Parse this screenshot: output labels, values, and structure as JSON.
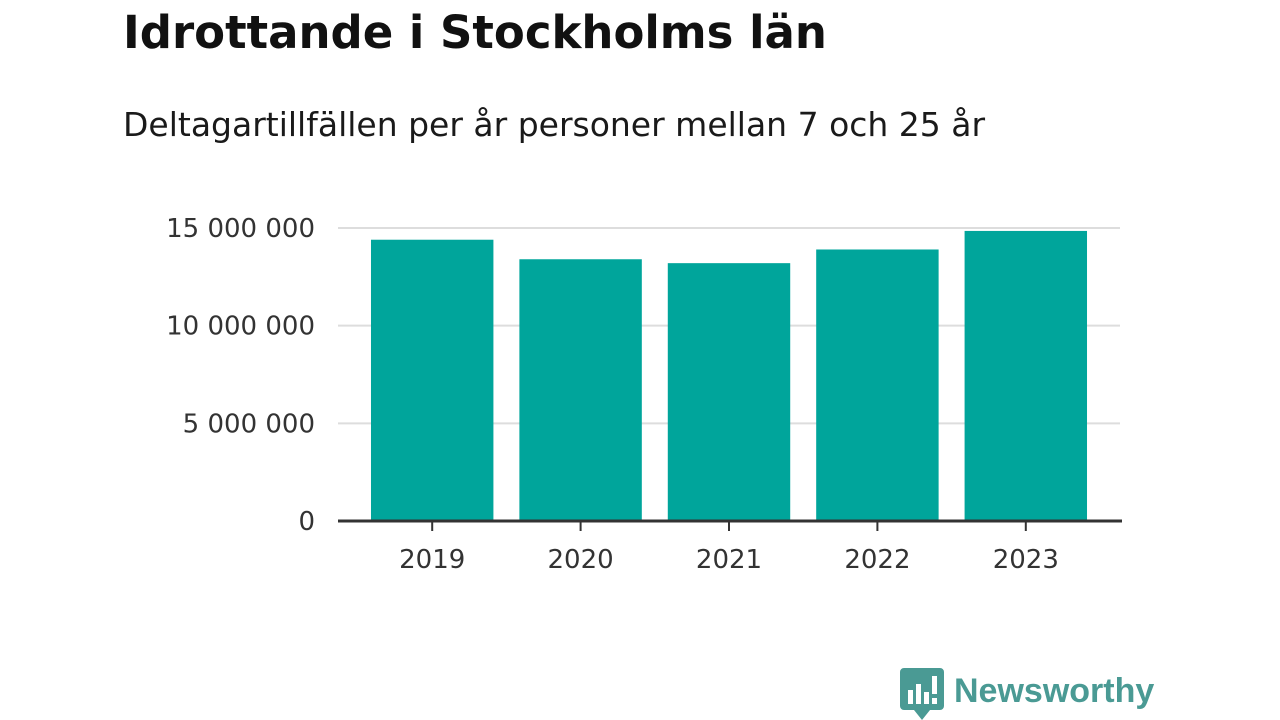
{
  "title": "Idrottande i Stockholms län",
  "subtitle": "Deltagartillfällen per år personer mellan 7 och 25 år",
  "colors": {
    "bar": "#00a59b",
    "grid": "#dddddd",
    "axis": "#333333",
    "brand": "#4a9a94"
  },
  "brand": {
    "name": "Newsworthy",
    "icon": "bar-chart-speech-bubble-icon"
  },
  "chart_data": {
    "type": "bar",
    "categories": [
      "2019",
      "2020",
      "2021",
      "2022",
      "2023"
    ],
    "values": [
      14400000,
      13400000,
      13200000,
      13900000,
      14850000
    ],
    "ylim": [
      0,
      15000000
    ],
    "yticks": [
      0,
      5000000,
      10000000,
      15000000
    ],
    "ytick_labels": [
      "0",
      "5 000 000",
      "10 000 000",
      "15 000 000"
    ],
    "grid": true,
    "legend": "none"
  }
}
